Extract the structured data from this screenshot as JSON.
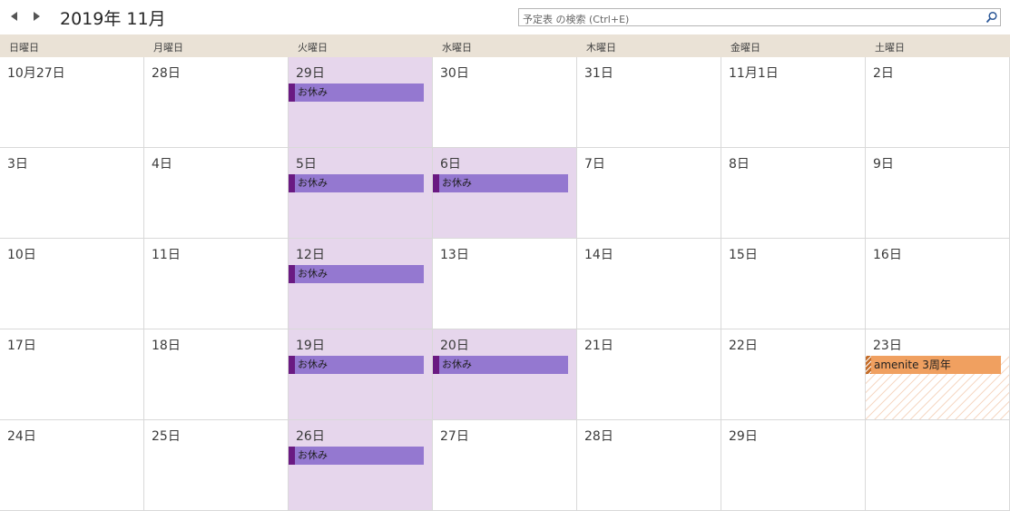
{
  "header": {
    "title": "2019年 11月",
    "prev_icon": "triangle-left-icon",
    "next_icon": "triangle-right-icon"
  },
  "search": {
    "placeholder": "予定表 の検索 (Ctrl+E)",
    "value": "",
    "icon": "search-icon"
  },
  "weekdays": [
    "日曜日",
    "月曜日",
    "火曜日",
    "水曜日",
    "木曜日",
    "金曜日",
    "土曜日"
  ],
  "weeks": [
    [
      {
        "label": "10月27日",
        "events": []
      },
      {
        "label": "28日",
        "events": []
      },
      {
        "label": "29日",
        "events": [
          "お休み"
        ]
      },
      {
        "label": "30日",
        "events": []
      },
      {
        "label": "31日",
        "events": []
      },
      {
        "label": "11月1日",
        "events": []
      },
      {
        "label": "2日",
        "events": []
      }
    ],
    [
      {
        "label": "3日",
        "events": []
      },
      {
        "label": "4日",
        "events": []
      },
      {
        "label": "5日",
        "events": [
          "お休み"
        ]
      },
      {
        "label": "6日",
        "events": [
          "お休み"
        ]
      },
      {
        "label": "7日",
        "events": []
      },
      {
        "label": "8日",
        "events": []
      },
      {
        "label": "9日",
        "events": []
      }
    ],
    [
      {
        "label": "10日",
        "events": []
      },
      {
        "label": "11日",
        "events": []
      },
      {
        "label": "12日",
        "events": [
          "お休み"
        ]
      },
      {
        "label": "13日",
        "events": []
      },
      {
        "label": "14日",
        "events": []
      },
      {
        "label": "15日",
        "events": []
      },
      {
        "label": "16日",
        "events": []
      }
    ],
    [
      {
        "label": "17日",
        "events": []
      },
      {
        "label": "18日",
        "events": []
      },
      {
        "label": "19日",
        "events": [
          "お休み"
        ]
      },
      {
        "label": "20日",
        "events": [
          "お休み"
        ]
      },
      {
        "label": "21日",
        "events": []
      },
      {
        "label": "22日",
        "events": []
      },
      {
        "label": "23日",
        "events": [
          "amenite  3周年"
        ],
        "anniversary": true
      }
    ],
    [
      {
        "label": "24日",
        "events": []
      },
      {
        "label": "25日",
        "events": []
      },
      {
        "label": "26日",
        "events": [
          "お休み"
        ]
      },
      {
        "label": "27日",
        "events": []
      },
      {
        "label": "28日",
        "events": []
      },
      {
        "label": "29日",
        "events": []
      },
      {
        "label": "",
        "events": []
      }
    ]
  ],
  "colors": {
    "header_bg": "#eae2d6",
    "holiday_event": "#9478d0",
    "holiday_event_border": "#6a1a82",
    "holiday_cell": "#e6d6ec",
    "anniversary_event": "#f0a060"
  }
}
